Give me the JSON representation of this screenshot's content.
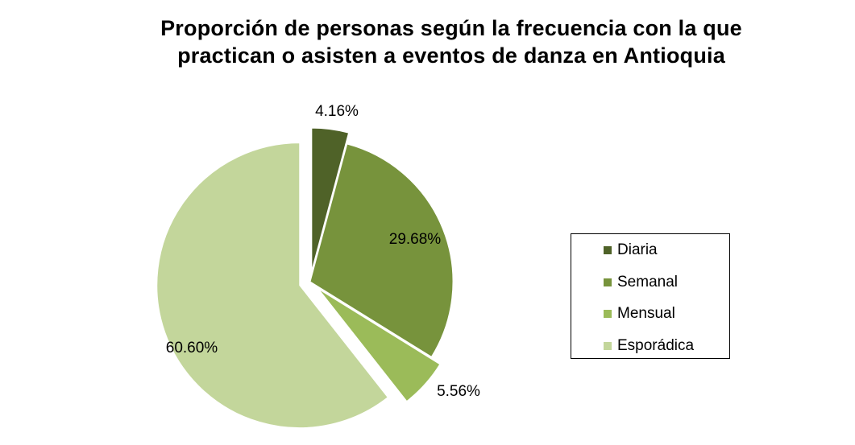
{
  "chart_data": {
    "type": "pie",
    "title": [
      "Proporción de personas según la frecuencia con la que",
      "practican o asisten a eventos de danza en Antioquia"
    ],
    "slices": [
      {
        "label": "Diaria",
        "value": 4.16,
        "data_label": "4.16%",
        "color": "#4f6228",
        "exploded": true
      },
      {
        "label": "Semanal",
        "value": 29.68,
        "data_label": "29.68%",
        "color": "#77933c",
        "exploded": false
      },
      {
        "label": "Mensual",
        "value": 5.56,
        "data_label": "5.56%",
        "color": "#9bbb59",
        "exploded": true
      },
      {
        "label": "Esporádica",
        "value": 60.6,
        "data_label": "60.60%",
        "color": "#c3d69b",
        "exploded": true
      }
    ],
    "legend_position": "right"
  }
}
